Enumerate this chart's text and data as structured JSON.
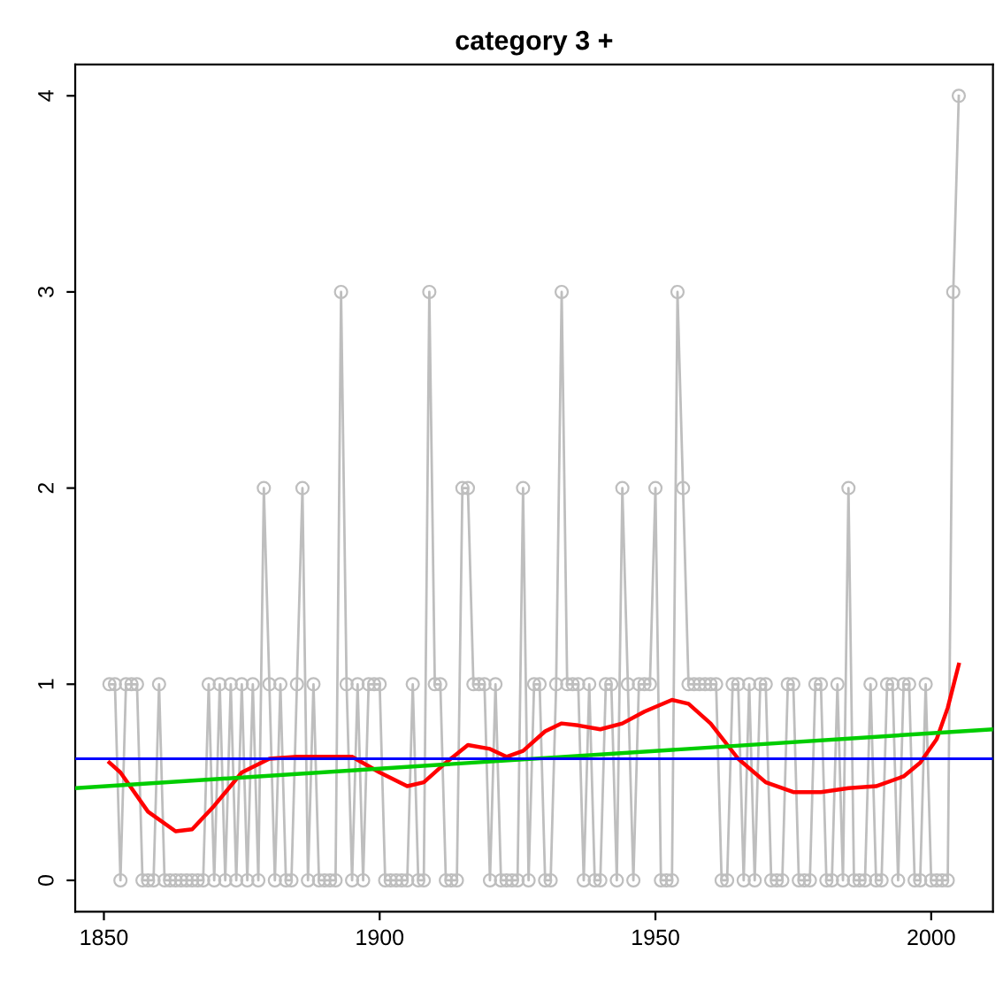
{
  "chart_data": {
    "type": "line",
    "title": "category 3 +",
    "x": [
      1851,
      1852,
      1853,
      1854,
      1855,
      1856,
      1857,
      1858,
      1859,
      1860,
      1861,
      1862,
      1863,
      1864,
      1865,
      1866,
      1867,
      1868,
      1869,
      1870,
      1871,
      1872,
      1873,
      1874,
      1875,
      1876,
      1877,
      1878,
      1879,
      1880,
      1881,
      1882,
      1883,
      1884,
      1885,
      1886,
      1887,
      1888,
      1889,
      1890,
      1891,
      1892,
      1893,
      1894,
      1895,
      1896,
      1897,
      1898,
      1899,
      1900,
      1901,
      1902,
      1903,
      1904,
      1905,
      1906,
      1907,
      1908,
      1909,
      1910,
      1911,
      1912,
      1913,
      1914,
      1915,
      1916,
      1917,
      1918,
      1919,
      1920,
      1921,
      1922,
      1923,
      1924,
      1925,
      1926,
      1927,
      1928,
      1929,
      1930,
      1931,
      1932,
      1933,
      1934,
      1935,
      1936,
      1937,
      1938,
      1939,
      1940,
      1941,
      1942,
      1943,
      1944,
      1945,
      1946,
      1947,
      1948,
      1949,
      1950,
      1951,
      1952,
      1953,
      1954,
      1955,
      1956,
      1957,
      1958,
      1959,
      1960,
      1961,
      1962,
      1963,
      1964,
      1965,
      1966,
      1967,
      1968,
      1969,
      1970,
      1971,
      1972,
      1973,
      1974,
      1975,
      1976,
      1977,
      1978,
      1979,
      1980,
      1981,
      1982,
      1983,
      1984,
      1985,
      1986,
      1987,
      1988,
      1989,
      1990,
      1991,
      1992,
      1993,
      1994,
      1995,
      1996,
      1997,
      1998,
      1999,
      2000,
      2001,
      2002,
      2003,
      2004,
      2005
    ],
    "series": [
      {
        "color": "#bebebe",
        "marker": "circle",
        "values": [
          1,
          1,
          0,
          1,
          1,
          1,
          0,
          0,
          0,
          1,
          0,
          0,
          0,
          0,
          0,
          0,
          0,
          0,
          1,
          0,
          1,
          0,
          1,
          0,
          1,
          0,
          1,
          0,
          2,
          1,
          0,
          1,
          0,
          0,
          1,
          2,
          0,
          1,
          0,
          0,
          0,
          0,
          3,
          1,
          0,
          1,
          0,
          1,
          1,
          1,
          0,
          0,
          0,
          0,
          0,
          1,
          0,
          0,
          3,
          1,
          1,
          0,
          0,
          0,
          2,
          2,
          1,
          1,
          1,
          0,
          1,
          0,
          0,
          0,
          0,
          2,
          0,
          1,
          1,
          0,
          0,
          1,
          3,
          1,
          1,
          1,
          0,
          1,
          0,
          0,
          1,
          1,
          0,
          2,
          1,
          0,
          1,
          1,
          1,
          2,
          0,
          0,
          0,
          3,
          2,
          1,
          1,
          1,
          1,
          1,
          1,
          0,
          0,
          1,
          1,
          0,
          1,
          0,
          1,
          1,
          0,
          0,
          0,
          1,
          1,
          0,
          0,
          0,
          1,
          1,
          0,
          0,
          1,
          0,
          2,
          0,
          0,
          0,
          1,
          0,
          0,
          1,
          1,
          0,
          1,
          1,
          0,
          0,
          1,
          0,
          0,
          0,
          0,
          3,
          4
        ]
      },
      {
        "color": "#ff0000",
        "type": "line",
        "x": [
          1851,
          1853,
          1858,
          1863,
          1866,
          1870,
          1875,
          1880,
          1885,
          1890,
          1895,
          1900,
          1905,
          1908,
          1912,
          1916,
          1920,
          1923,
          1926,
          1930,
          1933,
          1936,
          1940,
          1944,
          1948,
          1953,
          1956,
          1960,
          1965,
          1970,
          1975,
          1980,
          1985,
          1990,
          1995,
          1998,
          2001,
          2003,
          2005
        ],
        "values": [
          0.6,
          0.55,
          0.35,
          0.25,
          0.26,
          0.38,
          0.55,
          0.62,
          0.63,
          0.63,
          0.63,
          0.55,
          0.48,
          0.5,
          0.6,
          0.69,
          0.67,
          0.63,
          0.66,
          0.76,
          0.8,
          0.79,
          0.77,
          0.8,
          0.86,
          0.92,
          0.9,
          0.8,
          0.62,
          0.5,
          0.45,
          0.45,
          0.47,
          0.48,
          0.53,
          0.6,
          0.72,
          0.88,
          1.1
        ]
      },
      {
        "color": "#00cd00",
        "type": "line",
        "x": [
          1844.8,
          2011.2
        ],
        "values": [
          0.47,
          0.77
        ]
      }
    ],
    "ref_lines": [
      {
        "axis": "y",
        "value": 0.62,
        "color": "#0000ff"
      }
    ],
    "xlim": [
      1844.8,
      2011.2
    ],
    "ylim": [
      -0.16,
      4.16
    ],
    "xticks": [
      1850,
      1900,
      1950,
      2000
    ],
    "yticks": [
      0,
      1,
      2,
      3,
      4
    ]
  }
}
